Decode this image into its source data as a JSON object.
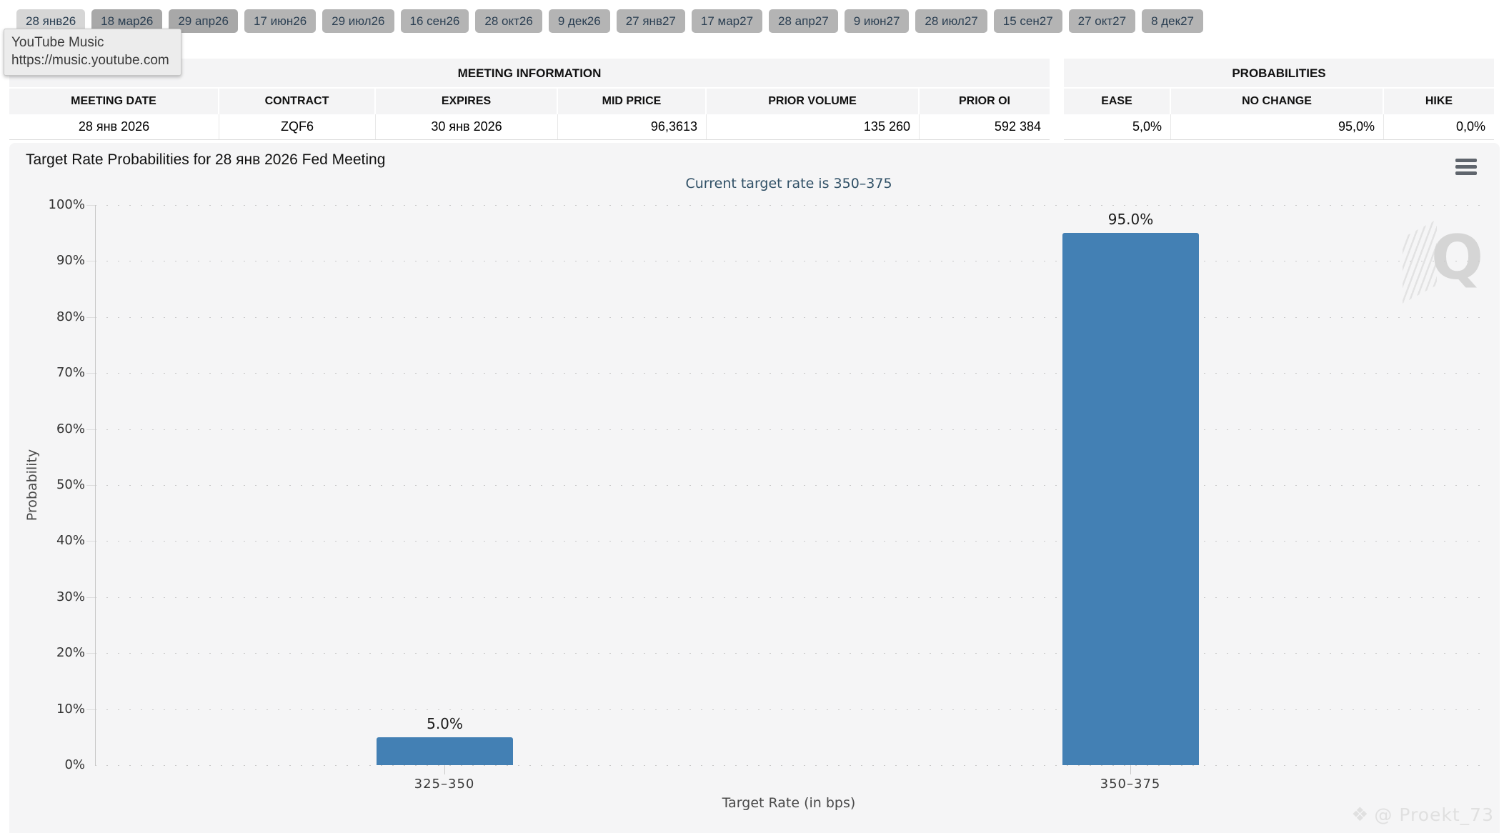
{
  "tooltip": {
    "title": "YouTube Music",
    "url": "https://music.youtube.com"
  },
  "tabs": {
    "items": [
      "28 янв26",
      "18 мар26",
      "29 апр26",
      "17 июн26",
      "29 июл26",
      "16 сен26",
      "28 окт26",
      "9 дек26",
      "27 янв27",
      "17 мар27",
      "28 апр27",
      "9 июн27",
      "28 июл27",
      "15 сен27",
      "27 окт27",
      "8 дек27"
    ],
    "active": "28 янв26"
  },
  "meeting_info": {
    "section_title": "MEETING INFORMATION",
    "columns": [
      {
        "label": "MEETING DATE",
        "value": "28 янв 2026"
      },
      {
        "label": "CONTRACT",
        "value": "ZQF6"
      },
      {
        "label": "EXPIRES",
        "value": "30 янв 2026"
      },
      {
        "label": "MID PRICE",
        "value": "96,3613"
      },
      {
        "label": "PRIOR VOLUME",
        "value": "135 260"
      },
      {
        "label": "PRIOR OI",
        "value": "592 384"
      }
    ]
  },
  "probabilities": {
    "section_title": "PROBABILITIES",
    "columns": [
      {
        "label": "EASE",
        "value": "5,0%"
      },
      {
        "label": "NO CHANGE",
        "value": "95,0%"
      },
      {
        "label": "HIKE",
        "value": "0,0%"
      }
    ]
  },
  "chart": {
    "title": "Target Rate Probabilities for 28 янв 2026 Fed Meeting",
    "menu_icon": "hamburger-icon",
    "watermark_letter": "Q",
    "credit_icon": "diamond-icon",
    "credit": "@ Proekt_73"
  },
  "chart_data": {
    "type": "bar",
    "title": "Target Rate Probabilities for 28 янв 2026 Fed Meeting",
    "subtitle": "Current target rate is 350–375",
    "categories": [
      "325–350",
      "350–375"
    ],
    "values": [
      5.0,
      95.0
    ],
    "value_labels": [
      "5.0%",
      "95.0%"
    ],
    "xlabel": "Target Rate (in bps)",
    "ylabel": "Probability",
    "ylim": [
      0,
      100
    ],
    "ytick_labels": [
      "0%",
      "10%",
      "20%",
      "30%",
      "40%",
      "50%",
      "60%",
      "70%",
      "80%",
      "90%",
      "100%"
    ],
    "grid": "dotted-horizontal",
    "legend": "none",
    "bar_color": "#4380b4"
  }
}
